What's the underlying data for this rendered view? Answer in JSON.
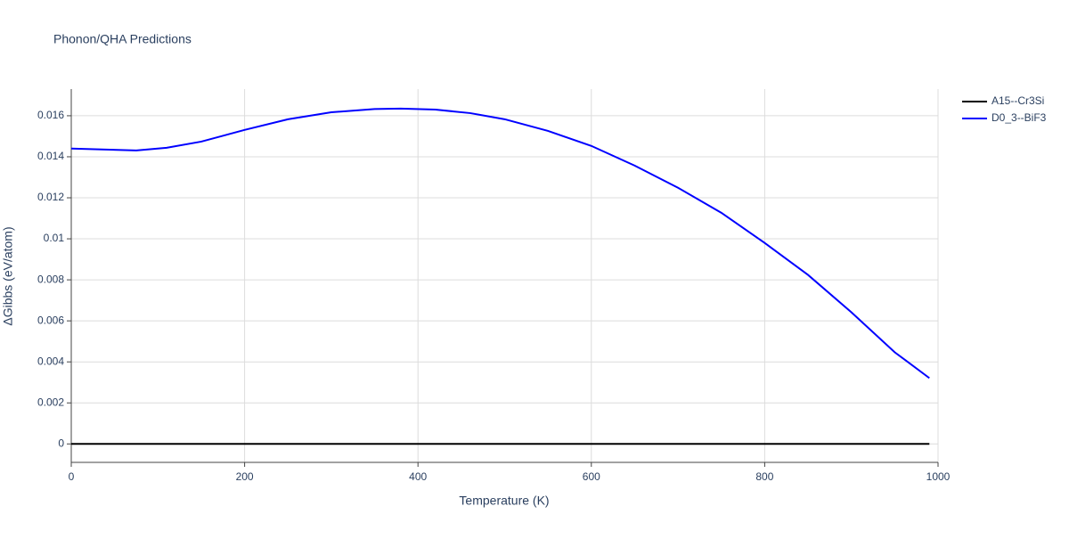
{
  "chart_data": {
    "type": "line",
    "title": "Phonon/QHA Predictions",
    "x_label": "Temperature (K)",
    "y_label": "ΔGibbs (eV/atom)",
    "x": [
      0,
      40,
      75,
      110,
      150,
      200,
      250,
      300,
      350,
      380,
      420,
      460,
      500,
      550,
      600,
      650,
      700,
      750,
      800,
      850,
      900,
      950,
      990
    ],
    "series": [
      {
        "name": "A15--Cr3Si",
        "color": "#000000",
        "values": [
          0,
          0,
          0,
          0,
          0,
          0,
          0,
          0,
          0,
          0,
          0,
          0,
          0,
          0,
          0,
          0,
          0,
          0,
          0,
          0,
          0,
          0,
          0
        ]
      },
      {
        "name": "D0_3--BiF3",
        "color": "#0000ff",
        "values": [
          0.0144,
          0.01435,
          0.01431,
          0.01444,
          0.01474,
          0.01531,
          0.01583,
          0.01617,
          0.01633,
          0.01635,
          0.0163,
          0.01613,
          0.01583,
          0.01526,
          0.01453,
          0.01357,
          0.01249,
          0.01127,
          0.0098,
          0.00824,
          0.00642,
          0.00447,
          0.00321
        ]
      }
    ],
    "xlim": [
      0,
      1000
    ],
    "xticks": [
      0,
      200,
      400,
      600,
      800,
      1000
    ],
    "ylim": [
      -0.0009,
      0.0173
    ],
    "yticks": [
      0,
      0.002,
      0.004,
      0.006,
      0.008,
      0.01,
      0.012,
      0.014,
      0.016
    ],
    "grid": true,
    "legend": "top-right"
  }
}
